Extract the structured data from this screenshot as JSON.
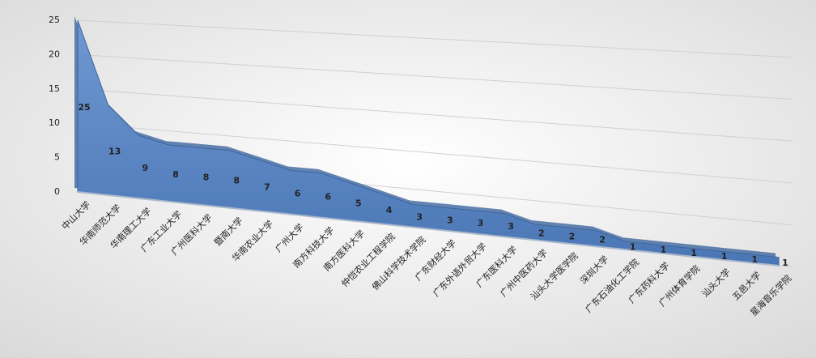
{
  "chart_data": {
    "type": "area",
    "categories": [
      "中山大学",
      "华南师范大学",
      "华南理工大学",
      "广东工业大学",
      "广州医科大学",
      "暨南大学",
      "华南农业大学",
      "广州大学",
      "南方科技大学",
      "南方医科大学",
      "仲恺农业工程学院",
      "佛山科学技术学院",
      "广东财经大学",
      "广东外语外贸大学",
      "广东医科大学",
      "广州中医药大学",
      "汕头大学医学院",
      "深圳大学",
      "广东石油化工学院",
      "广东药科大学",
      "广州体育学院",
      "汕头大学",
      "五邑大学",
      "星海音乐学院"
    ],
    "values": [
      25,
      13,
      9,
      8,
      8,
      8,
      7,
      6,
      6,
      5,
      4,
      3,
      3,
      3,
      3,
      2,
      2,
      2,
      1,
      1,
      1,
      1,
      1,
      1
    ],
    "color": "#5b87c6",
    "ylim": [
      0,
      25
    ],
    "yticks": [
      0,
      5,
      10,
      15,
      20,
      25
    ],
    "grid": true
  }
}
